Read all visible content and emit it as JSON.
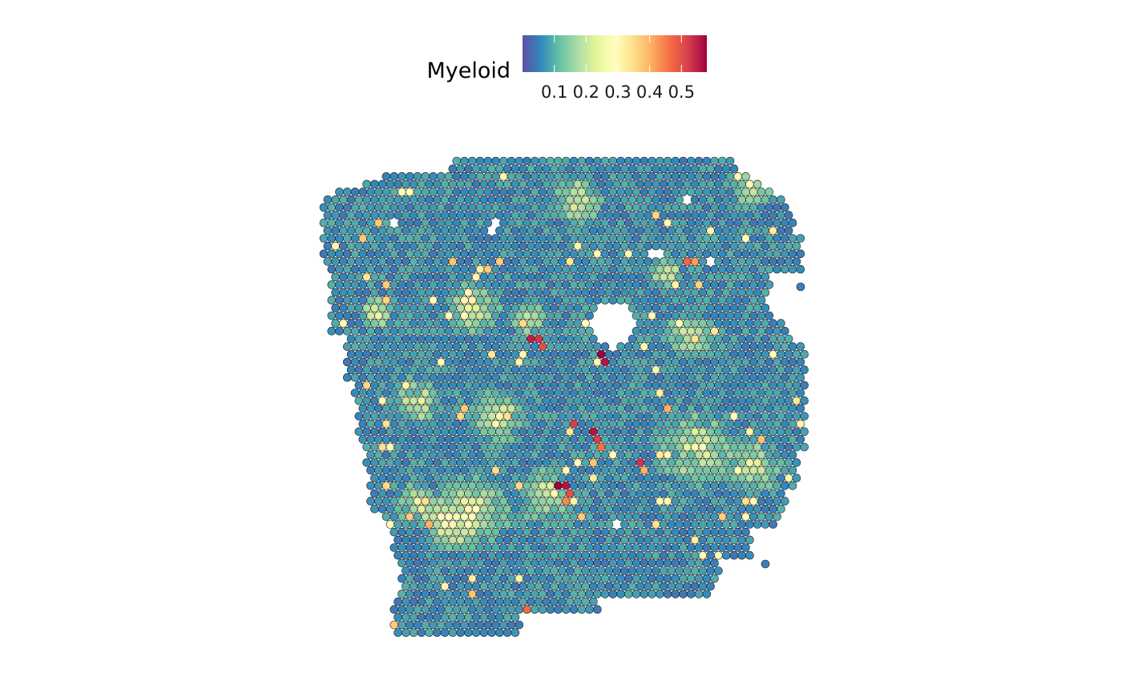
{
  "chart_data": {
    "type": "scatter",
    "subtype": "spatial-spot-map",
    "title": "",
    "xlabel": "",
    "ylabel": "",
    "axes_visible": false,
    "grid": false,
    "legend": {
      "title": "Myeloid",
      "placement": "top",
      "type": "colorbar",
      "ticks": [
        0.1,
        0.2,
        0.3,
        0.4,
        0.5
      ],
      "tick_labels": [
        "0.1",
        "0.2",
        "0.3",
        "0.4",
        "0.5"
      ],
      "range": [
        0.0,
        0.58
      ]
    },
    "colormap": {
      "name": "Spectral (reversed)",
      "stops": [
        "#5E4FA2",
        "#3288BD",
        "#66C2A5",
        "#ABDDA4",
        "#E6F598",
        "#FFFFBF",
        "#FEE08B",
        "#FDAE61",
        "#F46D43",
        "#D53E4F",
        "#9E0142"
      ]
    },
    "point_outline_color": "#1a1a1a",
    "value_distribution": {
      "background_low": [
        0.0,
        0.12
      ],
      "enriched_regions_mid": [
        0.12,
        0.25
      ]
    },
    "hotspots": [
      {
        "spot_row": 23,
        "spot_col": 26,
        "value": 0.55
      },
      {
        "spot_row": 23,
        "spot_col": 27,
        "value": 0.53
      },
      {
        "spot_row": 24,
        "spot_col": 28,
        "value": 0.5
      },
      {
        "spot_row": 25,
        "spot_col": 35,
        "value": 0.58
      },
      {
        "spot_row": 26,
        "spot_col": 36,
        "value": 0.56
      },
      {
        "spot_row": 13,
        "spot_col": 47,
        "value": 0.42
      },
      {
        "spot_row": 13,
        "spot_col": 46,
        "value": 0.47
      },
      {
        "spot_row": 34,
        "spot_col": 32,
        "value": 0.52
      },
      {
        "spot_row": 35,
        "spot_col": 34,
        "value": 0.56
      },
      {
        "spot_row": 36,
        "spot_col": 35,
        "value": 0.52
      },
      {
        "spot_row": 37,
        "spot_col": 35,
        "value": 0.46
      },
      {
        "spot_row": 32,
        "spot_col": 44,
        "value": 0.4
      },
      {
        "spot_row": 39,
        "spot_col": 40,
        "value": 0.53
      },
      {
        "spot_row": 40,
        "spot_col": 41,
        "value": 0.4
      },
      {
        "spot_row": 41,
        "spot_col": 4,
        "value": 0.48
      },
      {
        "spot_row": 42,
        "spot_col": 30,
        "value": 0.58
      },
      {
        "spot_row": 42,
        "spot_col": 31,
        "value": 0.56
      },
      {
        "spot_row": 43,
        "spot_col": 31,
        "value": 0.5
      },
      {
        "spot_row": 44,
        "spot_col": 31,
        "value": 0.44
      },
      {
        "spot_row": 47,
        "spot_col": 13,
        "value": 0.4
      },
      {
        "spot_row": 58,
        "spot_col": 26,
        "value": 0.47
      },
      {
        "spot_row": 58,
        "spot_col": 47,
        "value": 0.45
      }
    ]
  }
}
